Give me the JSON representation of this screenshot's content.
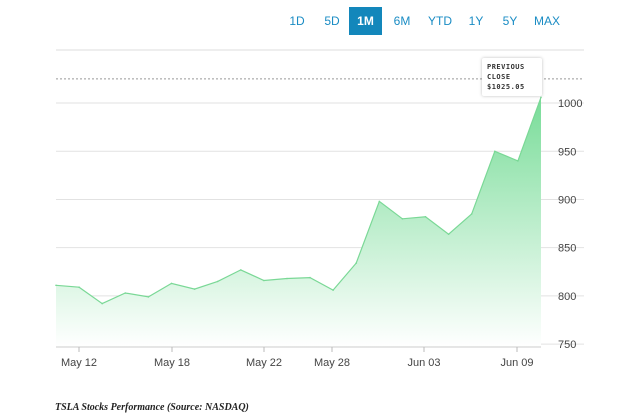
{
  "range_buttons": [
    {
      "label": "1D",
      "active": false
    },
    {
      "label": "5D",
      "active": false
    },
    {
      "label": "1M",
      "active": true
    },
    {
      "label": "6M",
      "active": false
    },
    {
      "label": "YTD",
      "active": false
    },
    {
      "label": "1Y",
      "active": false
    },
    {
      "label": "5Y",
      "active": false
    },
    {
      "label": "MAX",
      "active": false
    }
  ],
  "previous_close": {
    "line1": "PREVIOUS",
    "line2": "CLOSE",
    "value": "$1025.05"
  },
  "caption": "TSLA Stocks Performance (Source: NASDAQ)",
  "colors": {
    "area_top": "#78dc98",
    "area_bottom": "#ffffff",
    "line": "#7ad896",
    "accent": "#1387bb"
  },
  "chart_data": {
    "type": "area",
    "previous_close": 1025.05,
    "x_ticks": [
      "May 12",
      "May 18",
      "May 22",
      "May 28",
      "Jun 03",
      "Jun 09"
    ],
    "y_ticks": [
      750,
      800,
      850,
      900,
      950,
      1000
    ],
    "ylim": [
      747,
      1055
    ],
    "grid": true,
    "values": [
      811,
      809,
      792,
      803,
      799,
      813,
      807,
      815,
      827,
      816,
      818,
      819,
      806,
      834,
      898,
      880,
      882,
      864,
      885,
      950,
      940,
      1006
    ]
  }
}
